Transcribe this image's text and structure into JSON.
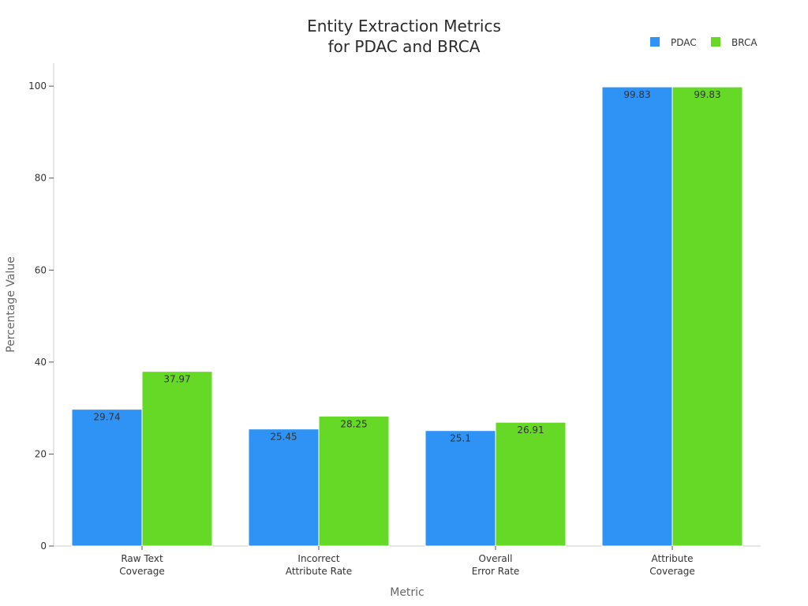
{
  "chart_data": {
    "type": "bar",
    "title": [
      "Entity Extraction Metrics",
      "for PDAC and BRCA"
    ],
    "xlabel": "Metric",
    "ylabel": "Percentage Value",
    "categories": [
      [
        "Raw Text",
        "Coverage"
      ],
      [
        "Incorrect",
        "Attribute Rate"
      ],
      [
        "Overall",
        "Error Rate"
      ],
      [
        "Attribute",
        "Coverage"
      ]
    ],
    "series": [
      {
        "name": "PDAC",
        "color": "#2f92f5",
        "values": [
          29.74,
          25.45,
          25.1,
          99.83
        ]
      },
      {
        "name": "BRCA",
        "color": "#66d927",
        "values": [
          37.97,
          28.25,
          26.91,
          99.83
        ]
      }
    ],
    "ylim": [
      0,
      105
    ],
    "yticks": [
      0,
      20,
      40,
      60,
      80,
      100
    ],
    "grid": false,
    "legend": "top-right"
  }
}
